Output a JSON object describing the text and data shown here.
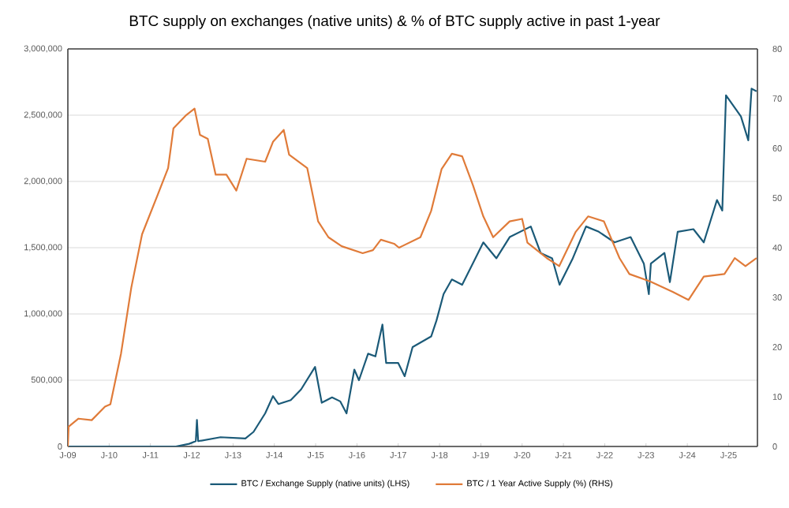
{
  "chart_data": {
    "type": "line",
    "title": "BTC supply on exchanges (native units) & % of BTC supply active in past 1-year",
    "xlim": [
      "2009-01-01",
      "2025-09-13"
    ],
    "xticks": [
      {
        "value": "2009-01-01",
        "label": "J-09"
      },
      {
        "value": "2010-01-01",
        "label": "J-10"
      },
      {
        "value": "2011-01-01",
        "label": "J-11"
      },
      {
        "value": "2012-01-01",
        "label": "J-12"
      },
      {
        "value": "2013-01-01",
        "label": "J-13"
      },
      {
        "value": "2014-01-01",
        "label": "J-14"
      },
      {
        "value": "2015-01-01",
        "label": "J-15"
      },
      {
        "value": "2016-01-01",
        "label": "J-16"
      },
      {
        "value": "2017-01-01",
        "label": "J-17"
      },
      {
        "value": "2018-01-01",
        "label": "J-18"
      },
      {
        "value": "2019-01-01",
        "label": "J-19"
      },
      {
        "value": "2020-01-01",
        "label": "J-20"
      },
      {
        "value": "2021-01-01",
        "label": "J-21"
      },
      {
        "value": "2022-01-01",
        "label": "J-22"
      },
      {
        "value": "2023-01-01",
        "label": "J-23"
      },
      {
        "value": "2024-01-01",
        "label": "J-24"
      },
      {
        "value": "2025-01-01",
        "label": "J-25"
      }
    ],
    "ylim": [
      0,
      3000000
    ],
    "yticks": [
      {
        "value": 0,
        "label": "0"
      },
      {
        "value": 500000,
        "label": "500,000"
      },
      {
        "value": 1000000,
        "label": "1,000,000"
      },
      {
        "value": 1500000,
        "label": "1,500,000"
      },
      {
        "value": 2000000,
        "label": "2,000,000"
      },
      {
        "value": 2500000,
        "label": "2,500,000"
      },
      {
        "value": 3000000,
        "label": "3,000,000"
      }
    ],
    "y2lim": [
      0,
      80
    ],
    "y2ticks": [
      0,
      10,
      20,
      30,
      40,
      50,
      60,
      70,
      80
    ],
    "grid": "y",
    "legend": "bottom",
    "marker": "none",
    "line_style": "solid",
    "series": [
      {
        "name": "BTC / Exchange Supply (native units) (LHS)",
        "color": "#1b5a78",
        "x": [
          "2009-01-01",
          "2011-08-14",
          "2011-12-09",
          "2012-02-06",
          "2012-02-16",
          "2012-02-27",
          "2012-09-12",
          "2013-04-20",
          "2013-07-01",
          "2013-10-12",
          "2013-12-20",
          "2014-02-06",
          "2014-05-26",
          "2014-08-25",
          "2014-12-27",
          "2015-02-24",
          "2015-05-26",
          "2015-08-07",
          "2015-10-01",
          "2015-12-09",
          "2016-01-19",
          "2016-04-09",
          "2016-06-13",
          "2016-08-14",
          "2016-09-16",
          "2017-01-01",
          "2017-02-27",
          "2017-05-08",
          "2017-10-19",
          "2017-12-05",
          "2018-02-06",
          "2018-04-20",
          "2018-07-20",
          "2018-11-14",
          "2019-01-23",
          "2019-05-19",
          "2019-09-13",
          "2020-03-18",
          "2020-06-13",
          "2020-09-23",
          "2020-11-28",
          "2021-03-25",
          "2021-07-20",
          "2021-11-10",
          "2022-03-29",
          "2022-08-18",
          "2022-12-13",
          "2023-01-26",
          "2023-02-13",
          "2023-06-13",
          "2023-07-31",
          "2023-10-08",
          "2024-02-24",
          "2024-05-26",
          "2024-09-20",
          "2024-11-06",
          "2024-12-09",
          "2025-04-20",
          "2025-06-24",
          "2025-07-23",
          "2025-09-05"
        ],
        "values": [
          0,
          0,
          20000,
          40000,
          200000,
          40000,
          70000,
          60000,
          110000,
          250000,
          380000,
          320000,
          350000,
          430000,
          600000,
          330000,
          370000,
          340000,
          250000,
          580000,
          500000,
          700000,
          680000,
          920000,
          630000,
          630000,
          530000,
          750000,
          830000,
          950000,
          1150000,
          1260000,
          1220000,
          1420000,
          1540000,
          1420000,
          1580000,
          1660000,
          1460000,
          1420000,
          1220000,
          1420000,
          1660000,
          1620000,
          1540000,
          1580000,
          1380000,
          1150000,
          1380000,
          1460000,
          1240000,
          1620000,
          1640000,
          1540000,
          1860000,
          1780000,
          2650000,
          2490000,
          2310000,
          2700000,
          2680000
        ]
      },
      {
        "name": "BTC / 1 Year Active Supply (%) (RHS)",
        "color": "#e07b39",
        "axis": "y2",
        "x": [
          "2009-01-01",
          "2009-01-08",
          "2009-04-05",
          "2009-07-31",
          "2009-11-25",
          "2010-01-12",
          "2010-04-16",
          "2010-07-16",
          "2010-10-19",
          "2011-03-07",
          "2011-06-06",
          "2011-07-23",
          "2011-11-14",
          "2012-01-26",
          "2012-03-14",
          "2012-05-22",
          "2012-07-31",
          "2012-11-03",
          "2013-01-30",
          "2013-05-01",
          "2013-10-12",
          "2013-12-20",
          "2014-03-25",
          "2014-05-12",
          "2014-10-19",
          "2015-01-23",
          "2015-04-24",
          "2015-08-19",
          "2016-02-21",
          "2016-05-22",
          "2016-07-31",
          "2016-11-25",
          "2017-01-08",
          "2017-07-16",
          "2017-10-19",
          "2018-01-19",
          "2018-04-20",
          "2018-07-20",
          "2018-10-23",
          "2019-01-23",
          "2019-04-20",
          "2019-09-13",
          "2020-01-01",
          "2020-02-17",
          "2020-08-07",
          "2020-11-25",
          "2021-04-20",
          "2021-08-07",
          "2021-12-25",
          "2022-05-12",
          "2022-08-07",
          "2023-02-06",
          "2023-08-25",
          "2024-01-12",
          "2024-05-26",
          "2024-11-25",
          "2025-02-24",
          "2025-05-30",
          "2025-09-05"
        ],
        "values": [
          0,
          4,
          5.6,
          5.3,
          8,
          8.5,
          18.7,
          32,
          42.7,
          50.7,
          56,
          64,
          66.7,
          68,
          62.7,
          61.9,
          54.7,
          54.7,
          51.5,
          57.9,
          57.3,
          61.3,
          63.7,
          58.7,
          56,
          45.3,
          42.1,
          40.3,
          38.9,
          39.5,
          41.6,
          40.8,
          40,
          42.1,
          47.4,
          55.8,
          58.9,
          58.4,
          52.6,
          46.3,
          42.1,
          45.3,
          45.8,
          41,
          37.9,
          36.3,
          43.2,
          46.3,
          45.3,
          37.9,
          34.7,
          33.2,
          31.1,
          29.5,
          34.2,
          34.7,
          37.9,
          36.3,
          37.9
        ]
      }
    ]
  }
}
